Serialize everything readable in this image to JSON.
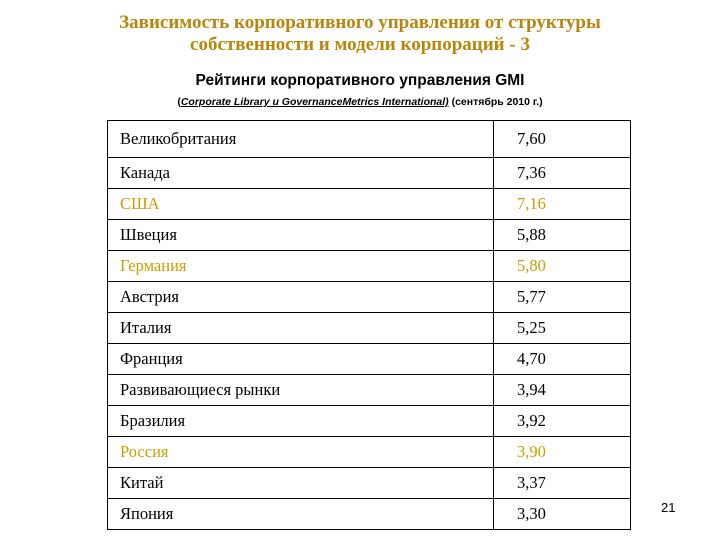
{
  "header": {
    "title_line1": "Зависимость корпоративного управления от структуры",
    "title_line2": "собственности и модели корпораций - 3",
    "subtitle": "Рейтинги корпоративного управления GMI",
    "source_prefix": "(",
    "source_underlined": "Corporate Library и GovernanceMetrics International)",
    "source_suffix": " (сентябрь 2010 г.)"
  },
  "colors": {
    "title": "#b8860b",
    "highlight_row": "#c8a000",
    "text": "#000000"
  },
  "table": {
    "rows": [
      {
        "country": "Великобритания",
        "value": "7,60",
        "highlight": false
      },
      {
        "country": "Канада",
        "value": "7,36",
        "highlight": false
      },
      {
        "country": "США",
        "value": "7,16",
        "highlight": true
      },
      {
        "country": "Швеция",
        "value": "5,88",
        "highlight": false
      },
      {
        "country": "Германия",
        "value": "5,80",
        "highlight": true
      },
      {
        "country": "Австрия",
        "value": "5,77",
        "highlight": false
      },
      {
        "country": "Италия",
        "value": "5,25",
        "highlight": false
      },
      {
        "country": "Франция",
        "value": "4,70",
        "highlight": false
      },
      {
        "country": "Развивающиеся рынки",
        "value": "3,94",
        "highlight": false
      },
      {
        "country": "Бразилия",
        "value": "3,92",
        "highlight": false
      },
      {
        "country": "Россия",
        "value": "3,90",
        "highlight": true
      },
      {
        "country": "Китай",
        "value": "3,37",
        "highlight": false
      },
      {
        "country": "Япония",
        "value": "3,30",
        "highlight": false
      }
    ]
  },
  "footer": {
    "page_number": "21"
  }
}
